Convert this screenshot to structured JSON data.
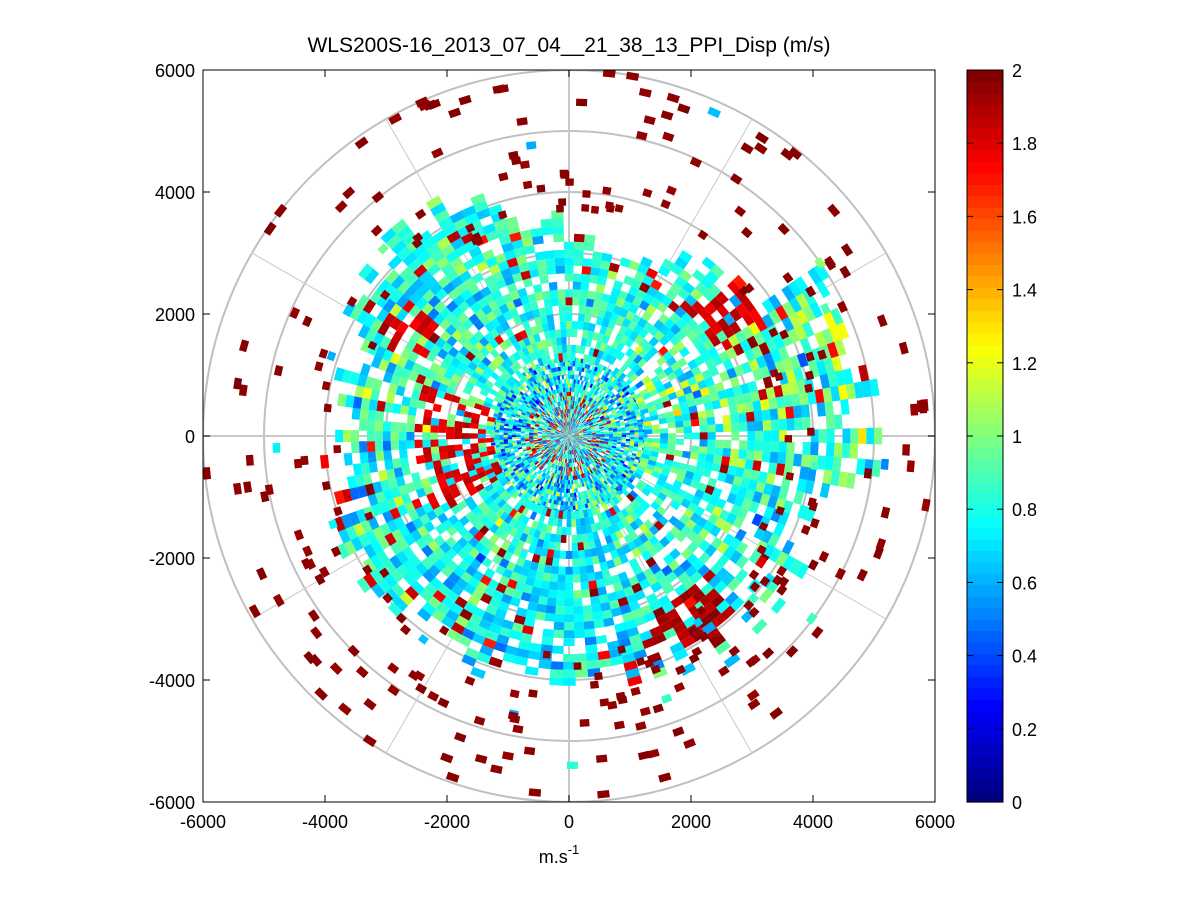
{
  "chart_data": {
    "type": "heatmap",
    "subtype": "polar-ppi",
    "title": "WLS200S-16_2013_07_04__21_38_13_PPI_Disp (m/s)",
    "xlabel": "m.s",
    "xlabel_superscript": "-1",
    "ylabel": "",
    "xlim": [
      -6000,
      6000
    ],
    "ylim": [
      -6000,
      6000
    ],
    "xticks": [
      -6000,
      -4000,
      -2000,
      0,
      2000,
      4000,
      6000
    ],
    "yticks": [
      6000,
      4000,
      2000,
      0,
      -2000,
      -4000,
      -6000
    ],
    "xtick_labels": [
      "-6000",
      "-4000",
      "-2000",
      "0",
      "2000",
      "4000",
      "6000"
    ],
    "ytick_labels": [
      "6000",
      "4000",
      "2000",
      "0",
      "-2000",
      "-4000",
      "-6000"
    ],
    "range_rings": [
      1000,
      2000,
      3000,
      4000,
      5000,
      6000
    ],
    "radial_lines_deg": [
      0,
      30,
      60,
      90,
      120,
      150,
      180,
      210,
      240,
      270,
      300,
      330
    ],
    "max_range": 6000,
    "colorbar": {
      "colormap": "jet",
      "clim": [
        0,
        2
      ],
      "ticks": [
        2,
        1.8,
        1.6,
        1.4,
        1.2,
        1,
        0.8,
        0.6,
        0.4,
        0.2,
        0
      ],
      "tick_labels": [
        "2",
        "1.8",
        "1.6",
        "1.4",
        "1.2",
        "1",
        "0.8",
        "0.6",
        "0.4",
        "0.2",
        "0"
      ]
    },
    "sectors": [
      {
        "az_start": 300,
        "az_end": 345,
        "r_min": 300,
        "r_max": 4200,
        "mean": 0.8,
        "spread": 0.25,
        "density": 0.85,
        "r_max_jitter": 700
      },
      {
        "az_start": 345,
        "az_end": 360,
        "r_min": 300,
        "r_max": 3600,
        "mean": 0.8,
        "spread": 0.2,
        "density": 0.8,
        "r_max_jitter": 500
      },
      {
        "az_start": 0,
        "az_end": 30,
        "r_min": 300,
        "r_max": 3200,
        "mean": 0.8,
        "spread": 0.2,
        "density": 0.8,
        "r_max_jitter": 500
      },
      {
        "az_start": 30,
        "az_end": 55,
        "r_min": 300,
        "r_max": 3600,
        "mean": 0.8,
        "spread": 0.25,
        "density": 0.75,
        "r_max_jitter": 600
      },
      {
        "az_start": 55,
        "az_end": 100,
        "r_min": 300,
        "r_max": 4900,
        "mean": 0.85,
        "spread": 0.3,
        "density": 0.8,
        "r_max_jitter": 600
      },
      {
        "az_start": 100,
        "az_end": 160,
        "r_min": 300,
        "r_max": 4200,
        "mean": 0.8,
        "spread": 0.25,
        "density": 0.75,
        "r_max_jitter": 800
      },
      {
        "az_start": 160,
        "az_end": 200,
        "r_min": 300,
        "r_max": 4000,
        "mean": 0.75,
        "spread": 0.2,
        "density": 0.85,
        "r_max_jitter": 500
      },
      {
        "az_start": 200,
        "az_end": 250,
        "r_min": 300,
        "r_max": 4000,
        "mean": 0.8,
        "spread": 0.25,
        "density": 0.85,
        "r_max_jitter": 600
      },
      {
        "az_start": 250,
        "az_end": 300,
        "r_min": 300,
        "r_max": 3800,
        "mean": 0.85,
        "spread": 0.3,
        "density": 0.75,
        "r_max_jitter": 600
      }
    ],
    "hot_zones": [
      {
        "az_start": 138,
        "az_end": 160,
        "r_min": 3200,
        "r_max": 4400,
        "value": 2.0
      },
      {
        "az_start": 240,
        "az_end": 290,
        "r_min": 1200,
        "r_max": 2500,
        "value": 1.9
      },
      {
        "az_start": 300,
        "az_end": 310,
        "r_min": 2800,
        "r_max": 3500,
        "value": 1.9
      },
      {
        "az_start": 45,
        "az_end": 60,
        "r_min": 2800,
        "r_max": 3800,
        "value": 1.9
      }
    ],
    "outlier_points": 260,
    "outlier_value": 2.0,
    "outlier_r_range": [
      3500,
      6000
    ]
  }
}
